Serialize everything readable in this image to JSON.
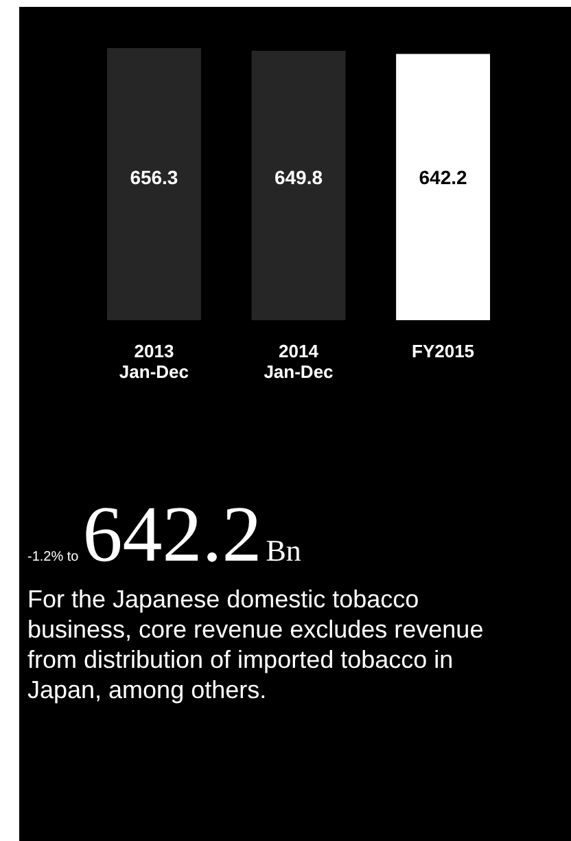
{
  "chart_data": {
    "type": "bar",
    "categories": [
      "2013 Jan-Dec",
      "2014 Jan-Dec",
      "FY2015"
    ],
    "values": [
      656.3,
      649.8,
      642.2
    ],
    "colors": [
      "#262626",
      "#262626",
      "#ffffff"
    ],
    "data_labels": true,
    "annotations": [
      "-1.2% to",
      "642.2",
      "Bn",
      "For the Japanese domestic tobacco business, core revenue excludes revenue from distribution of imported tobacco in Japan, among others."
    ]
  }
}
